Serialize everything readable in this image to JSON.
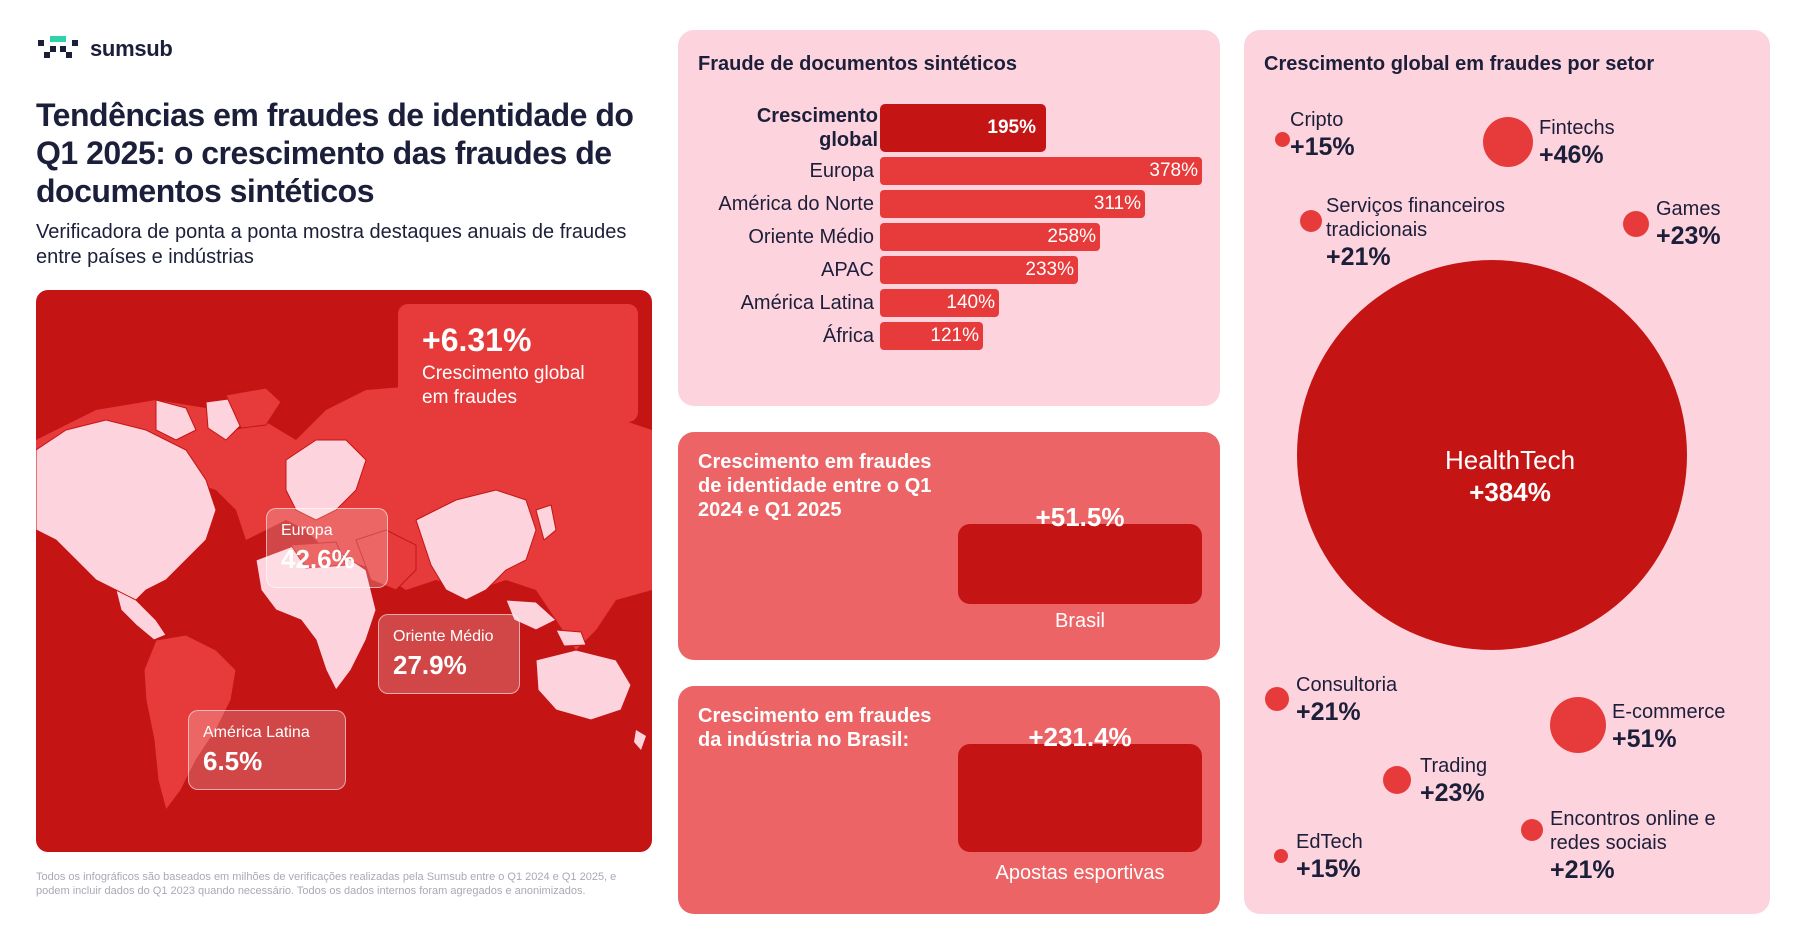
{
  "brand": {
    "name": "sumsub",
    "logo_icon": "sumsub-logo-icon"
  },
  "headline": "Tendências em fraudes de identidade do Q1 2025: o crescimento das fraudes de documentos sintéticos",
  "subheadline": "Verificadora de ponta a ponta mostra destaques anuais de fraudes entre países e indústrias",
  "map": {
    "global_value": "+6.31%",
    "global_label": "Crescimento global em fraudes",
    "regions": [
      {
        "name": "Europa",
        "value": "42.6%"
      },
      {
        "name": "Oriente Médio",
        "value": "27.9%"
      },
      {
        "name": "América Latina",
        "value": "6.5%"
      }
    ]
  },
  "footnote": "Todos os infográficos são baseados em milhões de verificações realizadas pela Sumsub entre o Q1 2024 e Q1 2025, e podem incluir dados do Q1 2023 quando necessário. Todos os dados internos foram agregados e anonimizados.",
  "growth_card": {
    "title": "Crescimento em fraudes de identidade entre o Q1 2024 e Q1 2025",
    "value": "+51.5%",
    "caption": "Brasil"
  },
  "industry_card": {
    "title": "Crescimento em fraudes da indústria no Brasil:",
    "value": "+231.4%",
    "caption": "Apostas esportivas"
  },
  "colors": {
    "dark_red": "#c41414",
    "red": "#e73b3b",
    "coral": "#ec6466",
    "pink": "#fdd3dd",
    "navy": "#1c1f3a"
  },
  "chart_data": [
    {
      "type": "bar",
      "orientation": "horizontal",
      "title": "Fraude de documentos sintéticos",
      "global": {
        "label_line1": "Crescimento",
        "label_line2": "global",
        "value": 195,
        "display": "195%"
      },
      "categories": [
        "Europa",
        "América do Norte",
        "Oriente Médio",
        "APAC",
        "América Latina",
        "África"
      ],
      "values": [
        378,
        311,
        258,
        233,
        140,
        121
      ],
      "value_labels": [
        "378%",
        "311%",
        "258%",
        "233%",
        "140%",
        "121%"
      ]
    },
    {
      "type": "bubble",
      "title": "Crescimento global em fraudes por setor",
      "items": [
        {
          "name": "Cripto",
          "value": 15,
          "display": "+15%"
        },
        {
          "name": "Fintechs",
          "value": 46,
          "display": "+46%"
        },
        {
          "name": "Serviços financeiros tradicionais",
          "value": 21,
          "display": "+21%"
        },
        {
          "name": "Games",
          "value": 23,
          "display": "+23%"
        },
        {
          "name": "HealthTech",
          "value": 384,
          "display": "+384%"
        },
        {
          "name": "Consultoria",
          "value": 21,
          "display": "+21%"
        },
        {
          "name": "E-commerce",
          "value": 51,
          "display": "+51%"
        },
        {
          "name": "Trading",
          "value": 23,
          "display": "+23%"
        },
        {
          "name": "EdTech",
          "value": 15,
          "display": "+15%"
        },
        {
          "name": "Encontros online e redes sociais",
          "value": 21,
          "display": "+21%"
        }
      ]
    }
  ]
}
